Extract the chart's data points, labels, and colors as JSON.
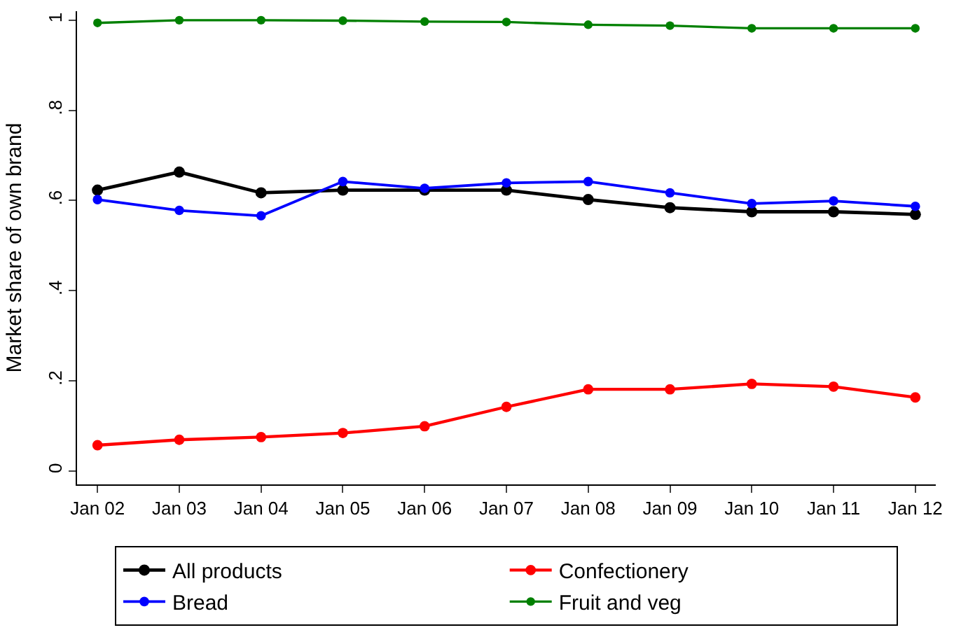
{
  "chart_data": {
    "type": "line",
    "ylabel": "Market share of own brand",
    "categories": [
      "Jan 02",
      "Jan 03",
      "Jan 04",
      "Jan 05",
      "Jan 06",
      "Jan 07",
      "Jan 08",
      "Jan 09",
      "Jan 10",
      "Jan 11",
      "Jan 12"
    ],
    "series": [
      {
        "name": "All products",
        "color": "#000000",
        "values": [
          0.623,
          0.663,
          0.617,
          0.623,
          0.623,
          0.623,
          0.602,
          0.584,
          0.575,
          0.575,
          0.569
        ]
      },
      {
        "name": "Confectionery",
        "color": "#ff0000",
        "values": [
          0.057,
          0.069,
          0.075,
          0.084,
          0.099,
          0.142,
          0.181,
          0.181,
          0.193,
          0.187,
          0.163
        ]
      },
      {
        "name": "Bread",
        "color": "#0000ff",
        "values": [
          0.602,
          0.578,
          0.566,
          0.642,
          0.627,
          0.639,
          0.642,
          0.617,
          0.593,
          0.599,
          0.587
        ]
      },
      {
        "name": "Fruit and veg",
        "color": "#008000",
        "values": [
          0.994,
          1.0,
          1.0,
          0.999,
          0.997,
          0.996,
          0.99,
          0.988,
          0.982,
          0.982,
          0.982
        ]
      }
    ],
    "ylim": [
      -0.03,
      1.02
    ],
    "yticks": [
      0,
      {
        "value": 0.2,
        "label": ".2"
      },
      {
        "value": 0.4,
        "label": ".4"
      },
      {
        "value": 0.6,
        "label": ".6"
      },
      {
        "value": 0.8,
        "label": ".8"
      },
      1
    ],
    "grid": false,
    "legend": "bottom",
    "marker": "circle",
    "line_style": "solid"
  }
}
